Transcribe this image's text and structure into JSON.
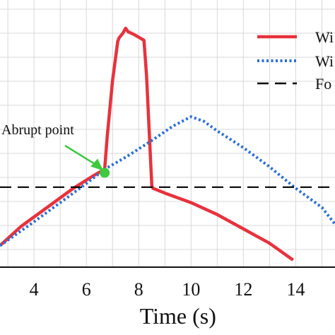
{
  "chart_data": {
    "type": "line",
    "xlabel": "Time (s)",
    "ylabel": "",
    "xlim": [
      2.7,
      15.5
    ],
    "ylim": [
      0,
      10
    ],
    "x_ticks": [
      4,
      6,
      8,
      10,
      12,
      14
    ],
    "x_tick_labels": [
      "4",
      "6",
      "8",
      "10",
      "12",
      "14"
    ],
    "grid": true,
    "legend_position": "top-right",
    "legend": [
      "Wi",
      "Wi",
      "Fo"
    ],
    "series": [
      {
        "name": "Wi",
        "color": "#e8323c",
        "style": "solid",
        "x": [
          2.7,
          3.5,
          4.5,
          5.5,
          6.3,
          6.7,
          6.8,
          7.0,
          7.2,
          7.25,
          7.4,
          7.5,
          7.6,
          7.8,
          8.2,
          8.3,
          8.5,
          8.55,
          9.0,
          10.0,
          11.0,
          12.0,
          13.0,
          13.9
        ],
        "y": [
          0.9,
          1.7,
          2.5,
          3.3,
          3.85,
          4.1,
          5.5,
          7.8,
          9.45,
          9.6,
          9.8,
          10.0,
          9.85,
          9.75,
          9.5,
          8.0,
          3.4,
          3.3,
          3.1,
          2.7,
          2.2,
          1.6,
          1.0,
          0.3
        ]
      },
      {
        "name": "Wi",
        "color": "#2a6fd6",
        "style": "dotted",
        "x": [
          2.7,
          4.0,
          5.0,
          6.0,
          6.7,
          7.5,
          8.5,
          9.3,
          10.0,
          10.5,
          11.0,
          12.0,
          13.0,
          14.0,
          15.0,
          15.5
        ],
        "y": [
          0.9,
          1.9,
          2.7,
          3.5,
          4.1,
          4.6,
          5.3,
          5.9,
          6.3,
          6.1,
          5.7,
          5.0,
          4.2,
          3.3,
          2.5,
          1.8
        ]
      },
      {
        "name": "Fo",
        "color": "#000000",
        "style": "dashed",
        "x": [
          2.7,
          15.5
        ],
        "y": [
          3.35,
          3.35
        ]
      }
    ],
    "annotations": [
      {
        "text": "Abrupt point",
        "x": 6.7,
        "y": 3.95,
        "color": "#3ec93e"
      }
    ]
  }
}
